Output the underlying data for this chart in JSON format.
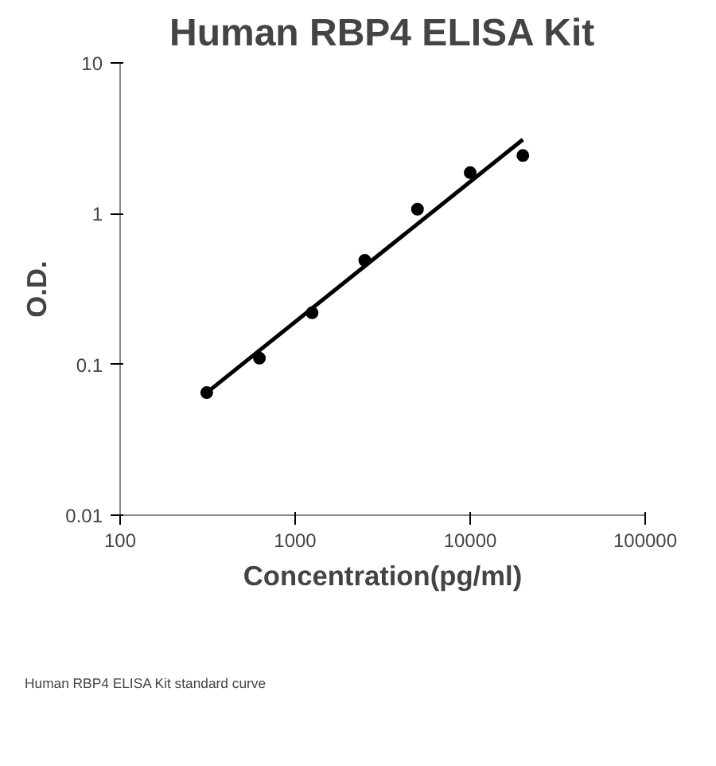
{
  "chart_data": {
    "type": "scatter",
    "title": "Human RBP4 ELISA Kit",
    "xlabel": "Concentration(pg/ml)",
    "ylabel": "O.D.",
    "log": "xy",
    "grid": false,
    "xlim": [
      100,
      100000
    ],
    "xticks": [
      100,
      1000,
      10000,
      100000
    ],
    "ylim": [
      0.01,
      10
    ],
    "yticks": [
      0.01,
      0.1,
      1,
      10
    ],
    "series": [
      {
        "marker": "circle",
        "color": "#000000",
        "x": [
          312.5,
          625,
          1250,
          2500,
          5000,
          10000,
          20000
        ],
        "values": [
          0.065,
          0.11,
          0.22,
          0.49,
          1.07,
          1.87,
          2.43
        ]
      },
      {
        "type": "line",
        "marker": "none",
        "color": "#000000",
        "x": [
          312.5,
          20000
        ],
        "values": [
          0.065,
          3.1
        ]
      }
    ],
    "annotations": [
      "Human RBP4 ELISA Kit standard curve"
    ]
  }
}
